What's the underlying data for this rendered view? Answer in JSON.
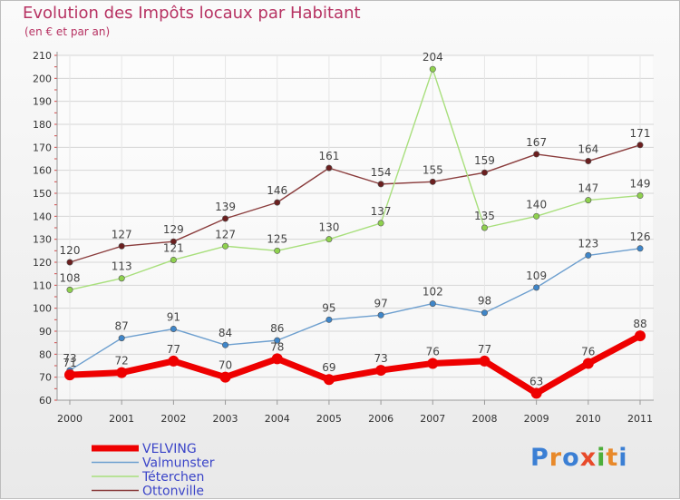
{
  "title": "Evolution des Impôts locaux par Habitant",
  "subtitle": "(en € et par an)",
  "logo_text": "Proxiti",
  "chart_data": {
    "type": "line",
    "title": "Evolution des Impôts locaux par Habitant",
    "subtitle": "(en € et par an)",
    "xlabel": "",
    "ylabel": "",
    "ylim": [
      60,
      210
    ],
    "yticks": [
      60,
      70,
      80,
      90,
      100,
      110,
      120,
      130,
      140,
      150,
      160,
      170,
      180,
      190,
      200,
      210
    ],
    "grid": true,
    "legend_position": "bottom-left",
    "x": [
      "2000",
      "2001",
      "2002",
      "2003",
      "2004",
      "2005",
      "2006",
      "2007",
      "2008",
      "2009",
      "2010",
      "2011"
    ],
    "series": [
      {
        "name": "VELVING",
        "color": "#ee0000",
        "marker": "#ee0000",
        "values": [
          71,
          72,
          77,
          70,
          78,
          69,
          73,
          76,
          77,
          63,
          76,
          88
        ]
      },
      {
        "name": "Valmunster",
        "color": "#6d9fcf",
        "marker": "#3f86c9",
        "values": [
          73,
          87,
          91,
          84,
          86,
          95,
          97,
          102,
          98,
          109,
          123,
          126
        ]
      },
      {
        "name": "Téterchen",
        "color": "#a8df7c",
        "marker": "#8fd14f",
        "values": [
          108,
          113,
          121,
          127,
          125,
          130,
          137,
          204,
          135,
          140,
          147,
          149
        ]
      },
      {
        "name": "Ottonville",
        "color": "#8a3c3c",
        "marker": "#6b1f1f",
        "values": [
          120,
          127,
          129,
          139,
          146,
          161,
          154,
          155,
          159,
          167,
          164,
          171
        ]
      }
    ]
  }
}
